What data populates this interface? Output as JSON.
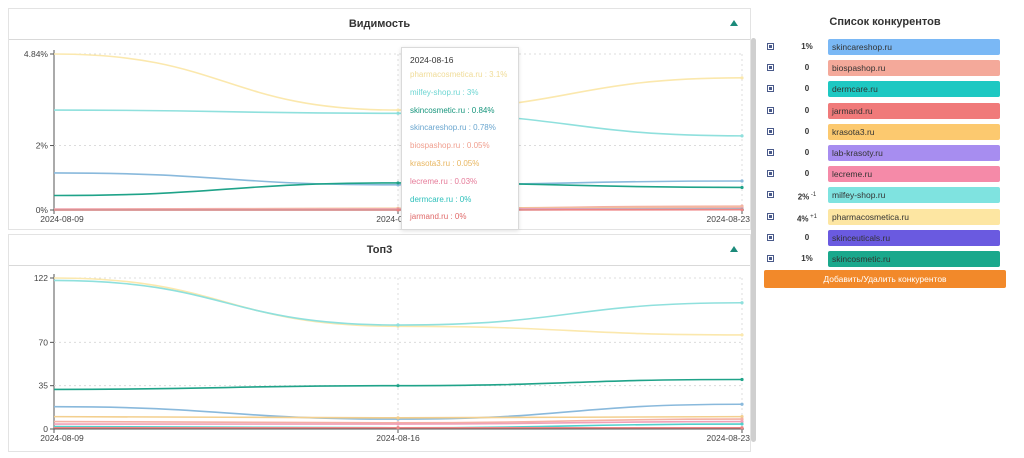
{
  "visibility_panel": {
    "title": "Видимость"
  },
  "top3_panel": {
    "title": "Топ3"
  },
  "sidebar": {
    "title": "Список конкурентов",
    "add_button": "Добавить/Удалить конкурентов",
    "competitors": [
      {
        "name": "skincareshop.ru",
        "value": "1%",
        "delta": "",
        "color": "#7ab8f5"
      },
      {
        "name": "biospashop.ru",
        "value": "0",
        "delta": "",
        "color": "#f4a99a"
      },
      {
        "name": "dermcare.ru",
        "value": "0",
        "delta": "",
        "color": "#1ec8c2"
      },
      {
        "name": "jarmand.ru",
        "value": "0",
        "delta": "",
        "color": "#f07a7a"
      },
      {
        "name": "krasota3.ru",
        "value": "0",
        "delta": "",
        "color": "#fcc96f"
      },
      {
        "name": "lab-krasoty.ru",
        "value": "0",
        "delta": "",
        "color": "#a78df0"
      },
      {
        "name": "lecreme.ru",
        "value": "0",
        "delta": "",
        "color": "#f58aa8"
      },
      {
        "name": "milfey-shop.ru",
        "value": "2%",
        "delta": "-1",
        "color": "#7fe3e0"
      },
      {
        "name": "pharmacosmetica.ru",
        "value": "4%",
        "delta": "+1",
        "color": "#fde6a2"
      },
      {
        "name": "skinceuticals.ru",
        "value": "0",
        "delta": "",
        "color": "#6a5ae0"
      },
      {
        "name": "skincosmetic.ru",
        "value": "1%",
        "delta": "",
        "color": "#1aa88c"
      }
    ]
  },
  "tooltip": {
    "date": "2024-08-16",
    "items": [
      {
        "text": "pharmacosmetica.ru : 3.1%",
        "color": "#f0dc98"
      },
      {
        "text": "milfey-shop.ru : 3%",
        "color": "#6fd6d3"
      },
      {
        "text": "skincosmetic.ru : 0.84%",
        "color": "#16957c"
      },
      {
        "text": "skincareshop.ru : 0.78%",
        "color": "#6aa6cf"
      },
      {
        "text": "biospashop.ru : 0.05%",
        "color": "#f0a090"
      },
      {
        "text": "krasota3.ru : 0.05%",
        "color": "#e8b660"
      },
      {
        "text": "lecreme.ru : 0.03%",
        "color": "#e57a98"
      },
      {
        "text": "dermcare.ru : 0%",
        "color": "#2ec0bb"
      },
      {
        "text": "jarmand.ru : 0%",
        "color": "#e06a6a"
      }
    ]
  },
  "chart_data": [
    {
      "type": "line",
      "x": [
        "2024-08-09",
        "2024-08-16",
        "2024-08-23"
      ],
      "y_ticks": [
        "0%",
        "2%",
        "4.84%"
      ],
      "ylim": [
        0,
        4.84
      ],
      "grid": true,
      "series": [
        {
          "name": "pharmacosmetica.ru",
          "values": [
            4.84,
            3.1,
            4.1
          ],
          "color": "#fbe8ad"
        },
        {
          "name": "milfey-shop.ru",
          "values": [
            3.1,
            3.0,
            2.3
          ],
          "color": "#8fe0dd"
        },
        {
          "name": "skincareshop.ru",
          "values": [
            1.15,
            0.78,
            0.9
          ],
          "color": "#89b9dc"
        },
        {
          "name": "skincosmetic.ru",
          "values": [
            0.45,
            0.84,
            0.7
          ],
          "color": "#1fa389"
        },
        {
          "name": "biospashop.ru",
          "values": [
            0.03,
            0.05,
            0.12
          ],
          "color": "#f4b0a4"
        },
        {
          "name": "krasota3.ru",
          "values": [
            0.02,
            0.05,
            0.08
          ],
          "color": "#f3cf8e"
        },
        {
          "name": "lecreme.ru",
          "values": [
            0.02,
            0.03,
            0.06
          ],
          "color": "#f0a0b8"
        },
        {
          "name": "dermcare.ru",
          "values": [
            0,
            0,
            0.02
          ],
          "color": "#4fd0cb"
        },
        {
          "name": "jarmand.ru",
          "values": [
            0,
            0,
            0.01
          ],
          "color": "#ee8585"
        }
      ]
    },
    {
      "type": "line",
      "x": [
        "2024-08-09",
        "2024-08-16",
        "2024-08-23"
      ],
      "y_ticks": [
        "0",
        "35",
        "70",
        "122"
      ],
      "ylim": [
        0,
        122
      ],
      "grid": true,
      "series": [
        {
          "name": "pharmacosmetica.ru",
          "values": [
            122,
            83,
            76
          ],
          "color": "#fbe8ad"
        },
        {
          "name": "milfey-shop.ru",
          "values": [
            120,
            84,
            102
          ],
          "color": "#8fe0dd"
        },
        {
          "name": "skincosmetic.ru",
          "values": [
            32,
            35,
            40
          ],
          "color": "#1fa389"
        },
        {
          "name": "skincareshop.ru",
          "values": [
            18,
            8,
            20
          ],
          "color": "#89b9dc"
        },
        {
          "name": "krasota3.ru",
          "values": [
            10,
            9,
            10
          ],
          "color": "#f3cf8e"
        },
        {
          "name": "biospashop.ru",
          "values": [
            6,
            5,
            8
          ],
          "color": "#f4b0a4"
        },
        {
          "name": "lecreme.ru",
          "values": [
            4,
            4,
            6
          ],
          "color": "#f0a0b8"
        },
        {
          "name": "dermcare.ru",
          "values": [
            2,
            1,
            4
          ],
          "color": "#4fd0cb"
        },
        {
          "name": "jarmand.ru",
          "values": [
            1,
            1,
            1
          ],
          "color": "#ee8585"
        }
      ]
    }
  ]
}
